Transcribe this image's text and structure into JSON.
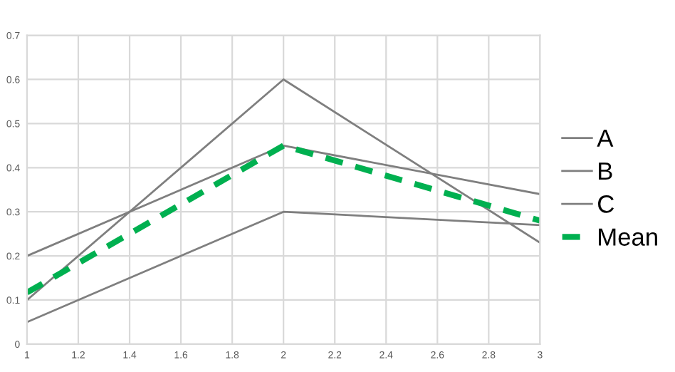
{
  "chart_data": {
    "type": "line",
    "x": [
      1,
      2,
      3
    ],
    "series": [
      {
        "name": "A",
        "color": "#7f7f7f",
        "values": [
          0.1,
          0.6,
          0.23
        ]
      },
      {
        "name": "B",
        "color": "#7f7f7f",
        "values": [
          0.2,
          0.45,
          0.34
        ]
      },
      {
        "name": "C",
        "color": "#7f7f7f",
        "values": [
          0.05,
          0.3,
          0.27
        ]
      },
      {
        "name": "Mean",
        "color": "#00b050",
        "values": [
          0.117,
          0.45,
          0.28
        ],
        "line_style": "dashed"
      }
    ],
    "xlim": [
      1,
      3
    ],
    "xticks": [
      1,
      1.2,
      1.4,
      1.6,
      1.8,
      2,
      2.2,
      2.4,
      2.6,
      2.8,
      3
    ],
    "ylim": [
      0,
      0.7
    ],
    "yticks": [
      0,
      0.1,
      0.2,
      0.3,
      0.4,
      0.5,
      0.6,
      0.7
    ],
    "grid": true,
    "legend": "right",
    "marker": "none"
  }
}
